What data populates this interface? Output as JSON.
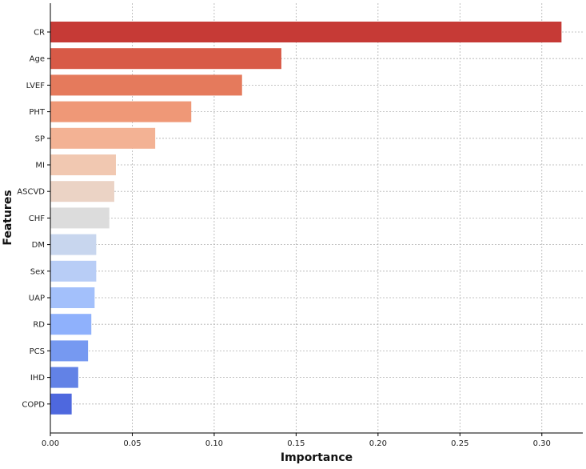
{
  "chart_data": {
    "type": "bar",
    "orientation": "horizontal",
    "xlabel": "Importance",
    "ylabel": "Features",
    "xlim": [
      0,
      0.325
    ],
    "xticks": [
      0.0,
      0.05,
      0.1,
      0.15,
      0.2,
      0.25,
      0.3
    ],
    "xtick_labels": [
      "0.00",
      "0.05",
      "0.10",
      "0.15",
      "0.20",
      "0.25",
      "0.30"
    ],
    "grid": true,
    "categories": [
      "CR",
      "Age",
      "LVEF",
      "PHT",
      "SP",
      "MI",
      "ASCVD",
      "CHF",
      "DM",
      "Sex",
      "UAP",
      "RD",
      "PCS",
      "IHD",
      "COPD"
    ],
    "values": [
      0.312,
      0.141,
      0.117,
      0.086,
      0.064,
      0.04,
      0.039,
      0.036,
      0.028,
      0.028,
      0.027,
      0.025,
      0.023,
      0.017,
      0.013
    ],
    "colors": [
      "#c63a36",
      "#d85a47",
      "#e57a5c",
      "#ef9877",
      "#f3b294",
      "#f1c8b1",
      "#ebd3c5",
      "#dcdcdc",
      "#c8d6ee",
      "#b8cdf6",
      "#a3c0fb",
      "#8fb1fc",
      "#7699f1",
      "#6282e6",
      "#4e68de"
    ]
  }
}
